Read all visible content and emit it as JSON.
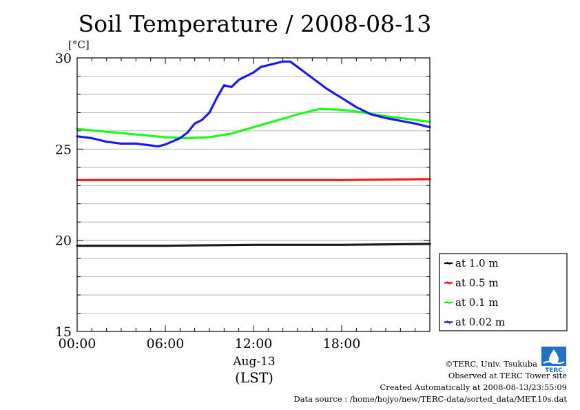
{
  "chart_data": {
    "type": "line",
    "title": "Soil Temperature / 2008-08-13",
    "ylabel": "[°C]",
    "xlabel_date": "Aug-13",
    "xlabel": "(LST)",
    "ylim": [
      15,
      30
    ],
    "xlim": [
      0,
      24
    ],
    "yticks": [
      15,
      20,
      25,
      30
    ],
    "ytick_labels": [
      "15",
      "20",
      "25",
      "30"
    ],
    "xticks": [
      0,
      6,
      12,
      18
    ],
    "xtick_labels": [
      "00:00",
      "06:00",
      "12:00",
      "18:00"
    ],
    "grid": true,
    "legend_position": "bottom-right",
    "series": [
      {
        "name": "at 1.0 m",
        "color": "#000000",
        "x": [
          0,
          6,
          12,
          18,
          24
        ],
        "y": [
          19.7,
          19.7,
          19.75,
          19.75,
          19.8
        ]
      },
      {
        "name": "at 0.5 m",
        "color": "#ff0000",
        "x": [
          0,
          6,
          12,
          18,
          24
        ],
        "y": [
          23.3,
          23.3,
          23.3,
          23.3,
          23.35
        ]
      },
      {
        "name": "at 0.1 m",
        "color": "#00ff00",
        "x": [
          0,
          2,
          4,
          6,
          7.5,
          9,
          10.5,
          12,
          13.5,
          15,
          16.5,
          18,
          19.5,
          21,
          22.5,
          24
        ],
        "y": [
          26.1,
          25.95,
          25.8,
          25.65,
          25.6,
          25.65,
          25.85,
          26.2,
          26.55,
          26.9,
          27.2,
          27.15,
          27.0,
          26.8,
          26.65,
          26.5
        ]
      },
      {
        "name": "at 0.02 m",
        "color": "#0000ff",
        "x": [
          0,
          1,
          2,
          3,
          4,
          5,
          5.5,
          6,
          7,
          7.5,
          8,
          8.5,
          9,
          9.5,
          10,
          10.5,
          11,
          11.5,
          12,
          12.5,
          13,
          13.5,
          14,
          14.5,
          15,
          16,
          17,
          18,
          19,
          20,
          21,
          22,
          23,
          24
        ],
        "y": [
          25.7,
          25.6,
          25.4,
          25.3,
          25.3,
          25.2,
          25.15,
          25.25,
          25.6,
          25.9,
          26.4,
          26.6,
          27.0,
          27.8,
          28.5,
          28.4,
          28.8,
          29.0,
          29.2,
          29.5,
          29.6,
          29.7,
          29.8,
          29.8,
          29.5,
          28.9,
          28.3,
          27.8,
          27.3,
          26.9,
          26.7,
          26.55,
          26.4,
          26.2
        ]
      }
    ]
  },
  "credits": {
    "copyright": "©TERC, Univ. Tsukuba",
    "observed": "Observed at TERC Tower site",
    "created": "Created Automatically at 2008-08-13/23:55:09",
    "source": "Data source : /home/hojyo/new/TERC-data/sorted_data/MET.10s.dat",
    "logo_text": "TERC"
  }
}
